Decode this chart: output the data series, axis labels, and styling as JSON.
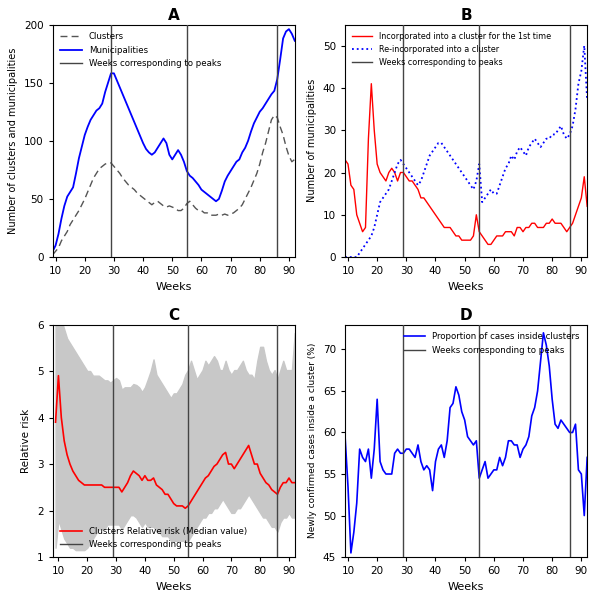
{
  "weeks": [
    9,
    10,
    11,
    12,
    13,
    14,
    15,
    16,
    17,
    18,
    19,
    20,
    21,
    22,
    23,
    24,
    25,
    26,
    27,
    28,
    29,
    30,
    31,
    32,
    33,
    34,
    35,
    36,
    37,
    38,
    39,
    40,
    41,
    42,
    43,
    44,
    45,
    46,
    47,
    48,
    49,
    50,
    51,
    52,
    53,
    54,
    55,
    56,
    57,
    58,
    59,
    60,
    61,
    62,
    63,
    64,
    65,
    66,
    67,
    68,
    69,
    70,
    71,
    72,
    73,
    74,
    75,
    76,
    77,
    78,
    79,
    80,
    81,
    82,
    83,
    84,
    85,
    86,
    87,
    88,
    89,
    90,
    91,
    92
  ],
  "peak_weeks": [
    29,
    55,
    86
  ],
  "A": {
    "clusters": [
      2,
      5,
      8,
      14,
      18,
      22,
      28,
      32,
      36,
      40,
      45,
      50,
      56,
      62,
      68,
      72,
      76,
      78,
      80,
      81,
      81,
      78,
      75,
      72,
      68,
      65,
      62,
      60,
      58,
      55,
      53,
      51,
      49,
      47,
      45,
      47,
      48,
      46,
      44,
      43,
      44,
      43,
      42,
      40,
      40,
      42,
      46,
      48,
      45,
      42,
      40,
      40,
      38,
      38,
      36,
      36,
      36,
      37,
      36,
      37,
      36,
      37,
      38,
      40,
      42,
      45,
      50,
      55,
      60,
      66,
      72,
      80,
      90,
      98,
      108,
      118,
      122,
      120,
      112,
      105,
      95,
      87,
      82,
      84
    ],
    "municipalities": [
      5,
      10,
      20,
      33,
      44,
      52,
      56,
      60,
      72,
      85,
      95,
      105,
      112,
      118,
      122,
      126,
      128,
      132,
      142,
      150,
      158,
      158,
      152,
      146,
      140,
      134,
      128,
      122,
      116,
      110,
      104,
      98,
      93,
      90,
      88,
      90,
      94,
      98,
      102,
      98,
      88,
      84,
      88,
      92,
      88,
      82,
      74,
      70,
      68,
      65,
      62,
      58,
      56,
      54,
      52,
      50,
      48,
      50,
      57,
      65,
      70,
      74,
      78,
      82,
      84,
      90,
      94,
      100,
      108,
      115,
      120,
      125,
      128,
      132,
      136,
      140,
      143,
      153,
      170,
      188,
      194,
      196,
      192,
      186
    ],
    "ylabel": "Number of clusters and municipalities",
    "ylim": [
      0,
      200
    ],
    "yticks": [
      0,
      50,
      100,
      150,
      200
    ]
  },
  "B": {
    "incorporated": [
      23,
      22,
      17,
      16,
      10,
      8,
      6,
      7,
      28,
      41,
      30,
      22,
      20,
      19,
      18,
      20,
      21,
      20,
      18,
      20,
      20,
      19,
      18,
      18,
      17,
      16,
      14,
      14,
      13,
      12,
      11,
      10,
      9,
      8,
      7,
      7,
      7,
      6,
      5,
      5,
      4,
      4,
      4,
      4,
      5,
      10,
      6,
      5,
      4,
      3,
      3,
      4,
      5,
      5,
      5,
      6,
      6,
      6,
      5,
      7,
      7,
      6,
      7,
      7,
      8,
      8,
      7,
      7,
      7,
      8,
      8,
      9,
      8,
      8,
      8,
      7,
      6,
      7,
      8,
      10,
      12,
      14,
      19,
      12
    ],
    "reincorporated": [
      0,
      0,
      0,
      0,
      0,
      1,
      2,
      3,
      4,
      5,
      7,
      10,
      13,
      14,
      15,
      16,
      18,
      20,
      22,
      23,
      22,
      21,
      20,
      19,
      18,
      17,
      18,
      20,
      22,
      24,
      25,
      26,
      27,
      27,
      26,
      25,
      24,
      23,
      22,
      21,
      20,
      19,
      18,
      17,
      16,
      18,
      22,
      13,
      14,
      15,
      16,
      15,
      15,
      17,
      19,
      21,
      22,
      24,
      23,
      25,
      26,
      25,
      24,
      26,
      27,
      28,
      27,
      26,
      27,
      28,
      28,
      29,
      29,
      30,
      31,
      29,
      28,
      29,
      31,
      35,
      41,
      44,
      50,
      37
    ],
    "ylabel": "Number of municipalities",
    "ylim": [
      0,
      55
    ],
    "yticks": [
      0,
      10,
      20,
      30,
      40,
      50
    ]
  },
  "C": {
    "rr_median": [
      3.9,
      4.9,
      4.0,
      3.5,
      3.2,
      3.0,
      2.85,
      2.75,
      2.65,
      2.6,
      2.55,
      2.55,
      2.55,
      2.55,
      2.55,
      2.55,
      2.55,
      2.5,
      2.5,
      2.5,
      2.5,
      2.5,
      2.5,
      2.4,
      2.5,
      2.6,
      2.75,
      2.85,
      2.8,
      2.75,
      2.65,
      2.75,
      2.65,
      2.65,
      2.7,
      2.55,
      2.5,
      2.45,
      2.35,
      2.35,
      2.25,
      2.15,
      2.1,
      2.1,
      2.1,
      2.05,
      2.1,
      2.2,
      2.3,
      2.4,
      2.5,
      2.6,
      2.7,
      2.75,
      2.85,
      2.95,
      3.0,
      3.1,
      3.2,
      3.25,
      3.0,
      3.0,
      2.9,
      3.0,
      3.1,
      3.2,
      3.3,
      3.4,
      3.2,
      3.0,
      3.0,
      2.8,
      2.7,
      2.6,
      2.55,
      2.45,
      2.4,
      2.35,
      2.5,
      2.6,
      2.6,
      2.7,
      2.6,
      2.6
    ],
    "rr_upper": [
      6.2,
      6.2,
      6.1,
      5.9,
      5.7,
      5.6,
      5.5,
      5.4,
      5.3,
      5.2,
      5.1,
      5.0,
      5.0,
      4.9,
      4.9,
      4.9,
      4.85,
      4.8,
      4.8,
      4.75,
      4.8,
      4.85,
      4.8,
      4.6,
      4.65,
      4.65,
      4.65,
      4.72,
      4.7,
      4.65,
      4.55,
      4.65,
      4.82,
      5.0,
      5.25,
      4.92,
      4.82,
      4.72,
      4.62,
      4.52,
      4.42,
      4.52,
      4.52,
      4.62,
      4.72,
      4.92,
      5.02,
      5.22,
      5.02,
      4.82,
      4.92,
      5.02,
      5.22,
      5.12,
      5.22,
      5.32,
      5.22,
      5.02,
      5.02,
      5.22,
      5.02,
      4.92,
      5.02,
      5.02,
      5.12,
      5.22,
      5.02,
      4.92,
      4.92,
      4.82,
      5.22,
      5.52,
      5.52,
      5.22,
      5.02,
      4.92,
      5.02,
      4.82,
      5.02,
      5.22,
      5.02,
      5.02,
      5.02,
      5.82
    ],
    "rr_lower": [
      1.2,
      1.8,
      1.6,
      1.4,
      1.3,
      1.2,
      1.2,
      1.15,
      1.15,
      1.15,
      1.15,
      1.2,
      1.3,
      1.4,
      1.5,
      1.6,
      1.6,
      1.6,
      1.7,
      1.7,
      1.7,
      1.7,
      1.7,
      1.6,
      1.7,
      1.8,
      1.9,
      1.9,
      1.85,
      1.75,
      1.65,
      1.75,
      1.65,
      1.65,
      1.65,
      1.55,
      1.55,
      1.45,
      1.45,
      1.45,
      1.35,
      1.35,
      1.35,
      1.35,
      1.35,
      1.35,
      1.35,
      1.45,
      1.55,
      1.65,
      1.75,
      1.85,
      1.85,
      1.95,
      1.95,
      2.05,
      2.05,
      2.15,
      2.25,
      2.15,
      2.05,
      1.95,
      1.95,
      2.05,
      2.05,
      2.15,
      2.25,
      2.35,
      2.25,
      2.15,
      2.05,
      1.95,
      1.85,
      1.85,
      1.75,
      1.65,
      1.65,
      1.55,
      1.75,
      1.85,
      1.85,
      1.95,
      1.85,
      1.85
    ],
    "ylabel": "Relative risk",
    "ylim": [
      1,
      6
    ],
    "yticks": [
      1,
      2,
      3,
      4,
      5,
      6
    ],
    "xlim": [
      8,
      92
    ]
  },
  "D": {
    "proportion": [
      59.5,
      53.5,
      45.5,
      48.0,
      51.5,
      58.0,
      57.0,
      56.5,
      58.0,
      54.5,
      58.0,
      64.0,
      56.5,
      55.5,
      55.0,
      55.0,
      55.0,
      57.5,
      58.0,
      57.5,
      57.5,
      58.0,
      58.0,
      57.5,
      57.0,
      58.5,
      56.5,
      55.5,
      56.0,
      55.5,
      53.0,
      56.5,
      58.0,
      58.5,
      57.0,
      59.0,
      63.0,
      63.5,
      65.5,
      64.5,
      62.5,
      61.5,
      59.5,
      59.0,
      58.5,
      59.0,
      54.5,
      55.5,
      56.5,
      54.5,
      55.0,
      55.5,
      55.5,
      57.0,
      56.0,
      57.0,
      59.0,
      59.0,
      58.5,
      58.5,
      57.0,
      58.0,
      58.5,
      59.5,
      62.0,
      63.0,
      65.0,
      68.5,
      72.0,
      70.5,
      68.0,
      64.0,
      61.0,
      60.5,
      61.5,
      61.0,
      60.5,
      60.0,
      60.0,
      61.0,
      55.5,
      55.0,
      50.0,
      57.0
    ],
    "ylabel": "Newly confirmed cases inside a cluster (%)",
    "ylim": [
      45,
      73
    ],
    "yticks": [
      45,
      50,
      55,
      60,
      65,
      70
    ]
  },
  "colors": {
    "blue": "#0000FF",
    "red": "#FF0000",
    "light_gray": "#C8C8C8",
    "dark_gray": "#404040"
  },
  "xlabel": "Weeks"
}
